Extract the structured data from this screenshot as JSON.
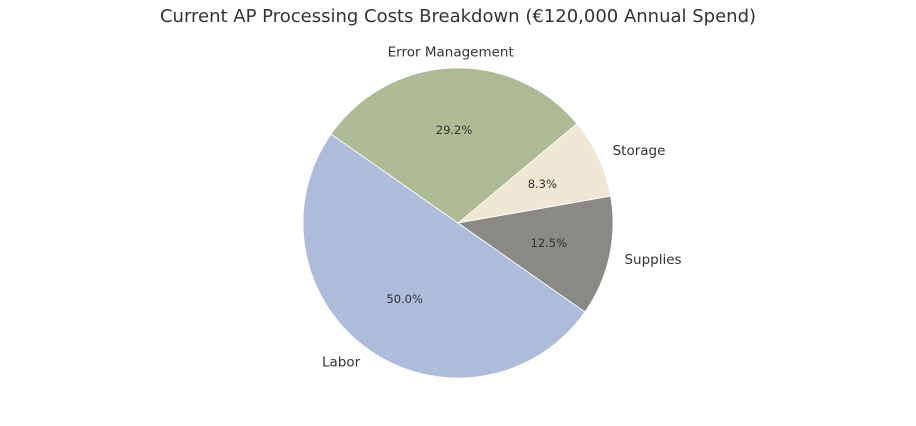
{
  "chart_data": {
    "type": "pie",
    "title": "Current AP Processing Costs Breakdown (€120,000 Annual Spend)",
    "slices": [
      {
        "label": "Labor",
        "value": 50.0,
        "pct_label": "50.0%",
        "color": "#aebcdc"
      },
      {
        "label": "Supplies",
        "value": 12.5,
        "pct_label": "12.5%",
        "color": "#8a8984"
      },
      {
        "label": "Storage",
        "value": 8.3,
        "pct_label": "8.3%",
        "color": "#efe6d4"
      },
      {
        "label": "Error Management",
        "value": 29.2,
        "pct_label": "29.2%",
        "color": "#aeba93"
      }
    ],
    "start_angle_deg": 145,
    "direction": "counterclockwise",
    "legend": "none"
  }
}
